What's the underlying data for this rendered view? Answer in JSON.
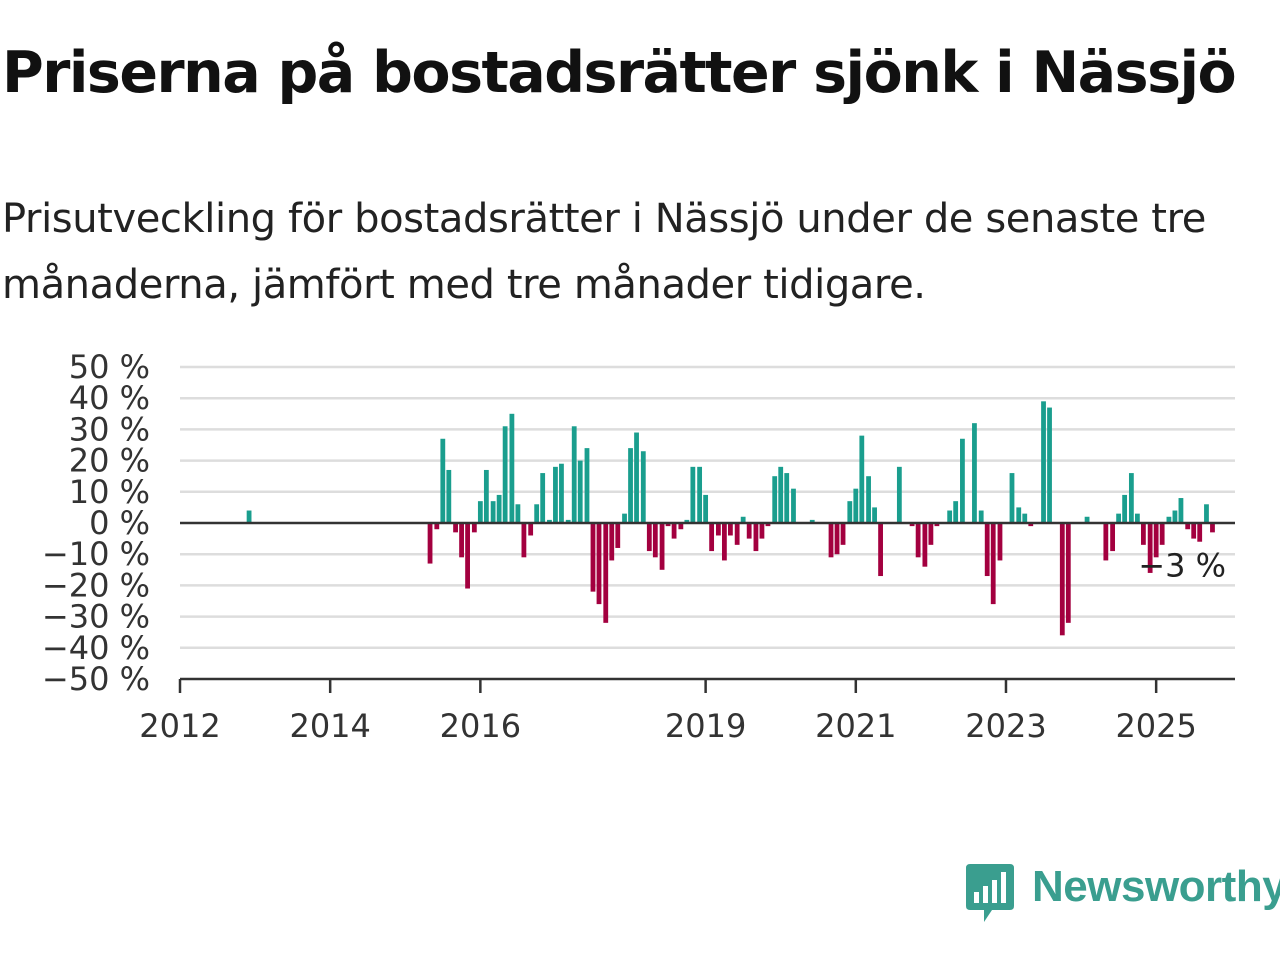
{
  "title": "Priserna på bostadsrätter sjönk i Nässjö",
  "subtitle": "Prisutveckling för bostadsrätter i Nässjö under de senaste tre månaderna, jämfört med tre månader tidigare.",
  "brand": {
    "name": "Newsworthy",
    "icon": "newsworthy-chart-bubble-icon",
    "color": "#3a9e8f"
  },
  "colors": {
    "positive": "#1a9e8e",
    "negative": "#a3003f",
    "grid": "#dddddd",
    "axis": "#333333"
  },
  "chart_data": {
    "type": "bar",
    "ylim": [
      -50,
      50
    ],
    "y_ticks": [
      "50 %",
      "40 %",
      "30 %",
      "20 %",
      "10 %",
      "0 %",
      "−10 %",
      "−20 %",
      "−30 %",
      "−40 %",
      "−50 %"
    ],
    "y_tick_values": [
      50,
      40,
      30,
      20,
      10,
      0,
      -10,
      -20,
      -30,
      -40,
      -50
    ],
    "x_ticks": [
      "2012",
      "2014",
      "2016",
      "2019",
      "2021",
      "2023",
      "2025"
    ],
    "x_tick_values": [
      2012,
      2014,
      2016,
      2019,
      2021,
      2023,
      2025
    ],
    "x_range": [
      2012,
      2026.05
    ],
    "grid": true,
    "annotation": {
      "label": "−3 %",
      "value": -3
    },
    "values": [
      {
        "x": 2012.92,
        "v": 4
      },
      {
        "x": 2015.33,
        "v": -13
      },
      {
        "x": 2015.42,
        "v": -2
      },
      {
        "x": 2015.5,
        "v": 27
      },
      {
        "x": 2015.58,
        "v": 17
      },
      {
        "x": 2015.67,
        "v": -3
      },
      {
        "x": 2015.75,
        "v": -11
      },
      {
        "x": 2015.83,
        "v": -21
      },
      {
        "x": 2015.92,
        "v": -3
      },
      {
        "x": 2016.0,
        "v": 7
      },
      {
        "x": 2016.08,
        "v": 17
      },
      {
        "x": 2016.17,
        "v": 7
      },
      {
        "x": 2016.25,
        "v": 9
      },
      {
        "x": 2016.33,
        "v": 31
      },
      {
        "x": 2016.42,
        "v": 35
      },
      {
        "x": 2016.5,
        "v": 6
      },
      {
        "x": 2016.58,
        "v": -11
      },
      {
        "x": 2016.67,
        "v": -4
      },
      {
        "x": 2016.75,
        "v": 6
      },
      {
        "x": 2016.83,
        "v": 16
      },
      {
        "x": 2016.92,
        "v": 1
      },
      {
        "x": 2017.0,
        "v": 18
      },
      {
        "x": 2017.08,
        "v": 19
      },
      {
        "x": 2017.17,
        "v": 1
      },
      {
        "x": 2017.25,
        "v": 31
      },
      {
        "x": 2017.33,
        "v": 20
      },
      {
        "x": 2017.42,
        "v": 24
      },
      {
        "x": 2017.5,
        "v": -22
      },
      {
        "x": 2017.58,
        "v": -26
      },
      {
        "x": 2017.67,
        "v": -32
      },
      {
        "x": 2017.75,
        "v": -12
      },
      {
        "x": 2017.83,
        "v": -8
      },
      {
        "x": 2017.92,
        "v": 3
      },
      {
        "x": 2018.0,
        "v": 24
      },
      {
        "x": 2018.08,
        "v": 29
      },
      {
        "x": 2018.17,
        "v": 23
      },
      {
        "x": 2018.25,
        "v": -9
      },
      {
        "x": 2018.33,
        "v": -11
      },
      {
        "x": 2018.42,
        "v": -15
      },
      {
        "x": 2018.5,
        "v": -1
      },
      {
        "x": 2018.58,
        "v": -5
      },
      {
        "x": 2018.67,
        "v": -2
      },
      {
        "x": 2018.75,
        "v": 1
      },
      {
        "x": 2018.83,
        "v": 18
      },
      {
        "x": 2018.92,
        "v": 18
      },
      {
        "x": 2019.0,
        "v": 9
      },
      {
        "x": 2019.08,
        "v": -9
      },
      {
        "x": 2019.17,
        "v": -4
      },
      {
        "x": 2019.25,
        "v": -12
      },
      {
        "x": 2019.33,
        "v": -4
      },
      {
        "x": 2019.42,
        "v": -7
      },
      {
        "x": 2019.5,
        "v": 2
      },
      {
        "x": 2019.58,
        "v": -5
      },
      {
        "x": 2019.67,
        "v": -9
      },
      {
        "x": 2019.75,
        "v": -5
      },
      {
        "x": 2019.83,
        "v": -1
      },
      {
        "x": 2019.92,
        "v": 15
      },
      {
        "x": 2020.0,
        "v": 18
      },
      {
        "x": 2020.08,
        "v": 16
      },
      {
        "x": 2020.17,
        "v": 11
      },
      {
        "x": 2020.42,
        "v": 1
      },
      {
        "x": 2020.67,
        "v": -11
      },
      {
        "x": 2020.75,
        "v": -10
      },
      {
        "x": 2020.83,
        "v": -7
      },
      {
        "x": 2020.92,
        "v": 7
      },
      {
        "x": 2021.0,
        "v": 11
      },
      {
        "x": 2021.08,
        "v": 28
      },
      {
        "x": 2021.17,
        "v": 15
      },
      {
        "x": 2021.25,
        "v": 5
      },
      {
        "x": 2021.33,
        "v": -17
      },
      {
        "x": 2021.58,
        "v": 18
      },
      {
        "x": 2021.75,
        "v": -1
      },
      {
        "x": 2021.83,
        "v": -11
      },
      {
        "x": 2021.92,
        "v": -14
      },
      {
        "x": 2022.0,
        "v": -7
      },
      {
        "x": 2022.08,
        "v": -1
      },
      {
        "x": 2022.25,
        "v": 4
      },
      {
        "x": 2022.33,
        "v": 7
      },
      {
        "x": 2022.42,
        "v": 27
      },
      {
        "x": 2022.58,
        "v": 32
      },
      {
        "x": 2022.67,
        "v": 4
      },
      {
        "x": 2022.75,
        "v": -17
      },
      {
        "x": 2022.83,
        "v": -26
      },
      {
        "x": 2022.92,
        "v": -12
      },
      {
        "x": 2023.08,
        "v": 16
      },
      {
        "x": 2023.17,
        "v": 5
      },
      {
        "x": 2023.25,
        "v": 3
      },
      {
        "x": 2023.33,
        "v": -1
      },
      {
        "x": 2023.5,
        "v": 39
      },
      {
        "x": 2023.58,
        "v": 37
      },
      {
        "x": 2023.75,
        "v": -36
      },
      {
        "x": 2023.83,
        "v": -32
      },
      {
        "x": 2024.08,
        "v": 2
      },
      {
        "x": 2024.33,
        "v": -12
      },
      {
        "x": 2024.42,
        "v": -9
      },
      {
        "x": 2024.5,
        "v": 3
      },
      {
        "x": 2024.58,
        "v": 9
      },
      {
        "x": 2024.67,
        "v": 16
      },
      {
        "x": 2024.75,
        "v": 3
      },
      {
        "x": 2024.83,
        "v": -7
      },
      {
        "x": 2024.92,
        "v": -16
      },
      {
        "x": 2025.0,
        "v": -11
      },
      {
        "x": 2025.08,
        "v": -7
      },
      {
        "x": 2025.17,
        "v": 2
      },
      {
        "x": 2025.25,
        "v": 4
      },
      {
        "x": 2025.33,
        "v": 8
      },
      {
        "x": 2025.42,
        "v": -2
      },
      {
        "x": 2025.5,
        "v": -5
      },
      {
        "x": 2025.58,
        "v": -6
      },
      {
        "x": 2025.67,
        "v": 6
      },
      {
        "x": 2025.75,
        "v": -3
      }
    ]
  }
}
